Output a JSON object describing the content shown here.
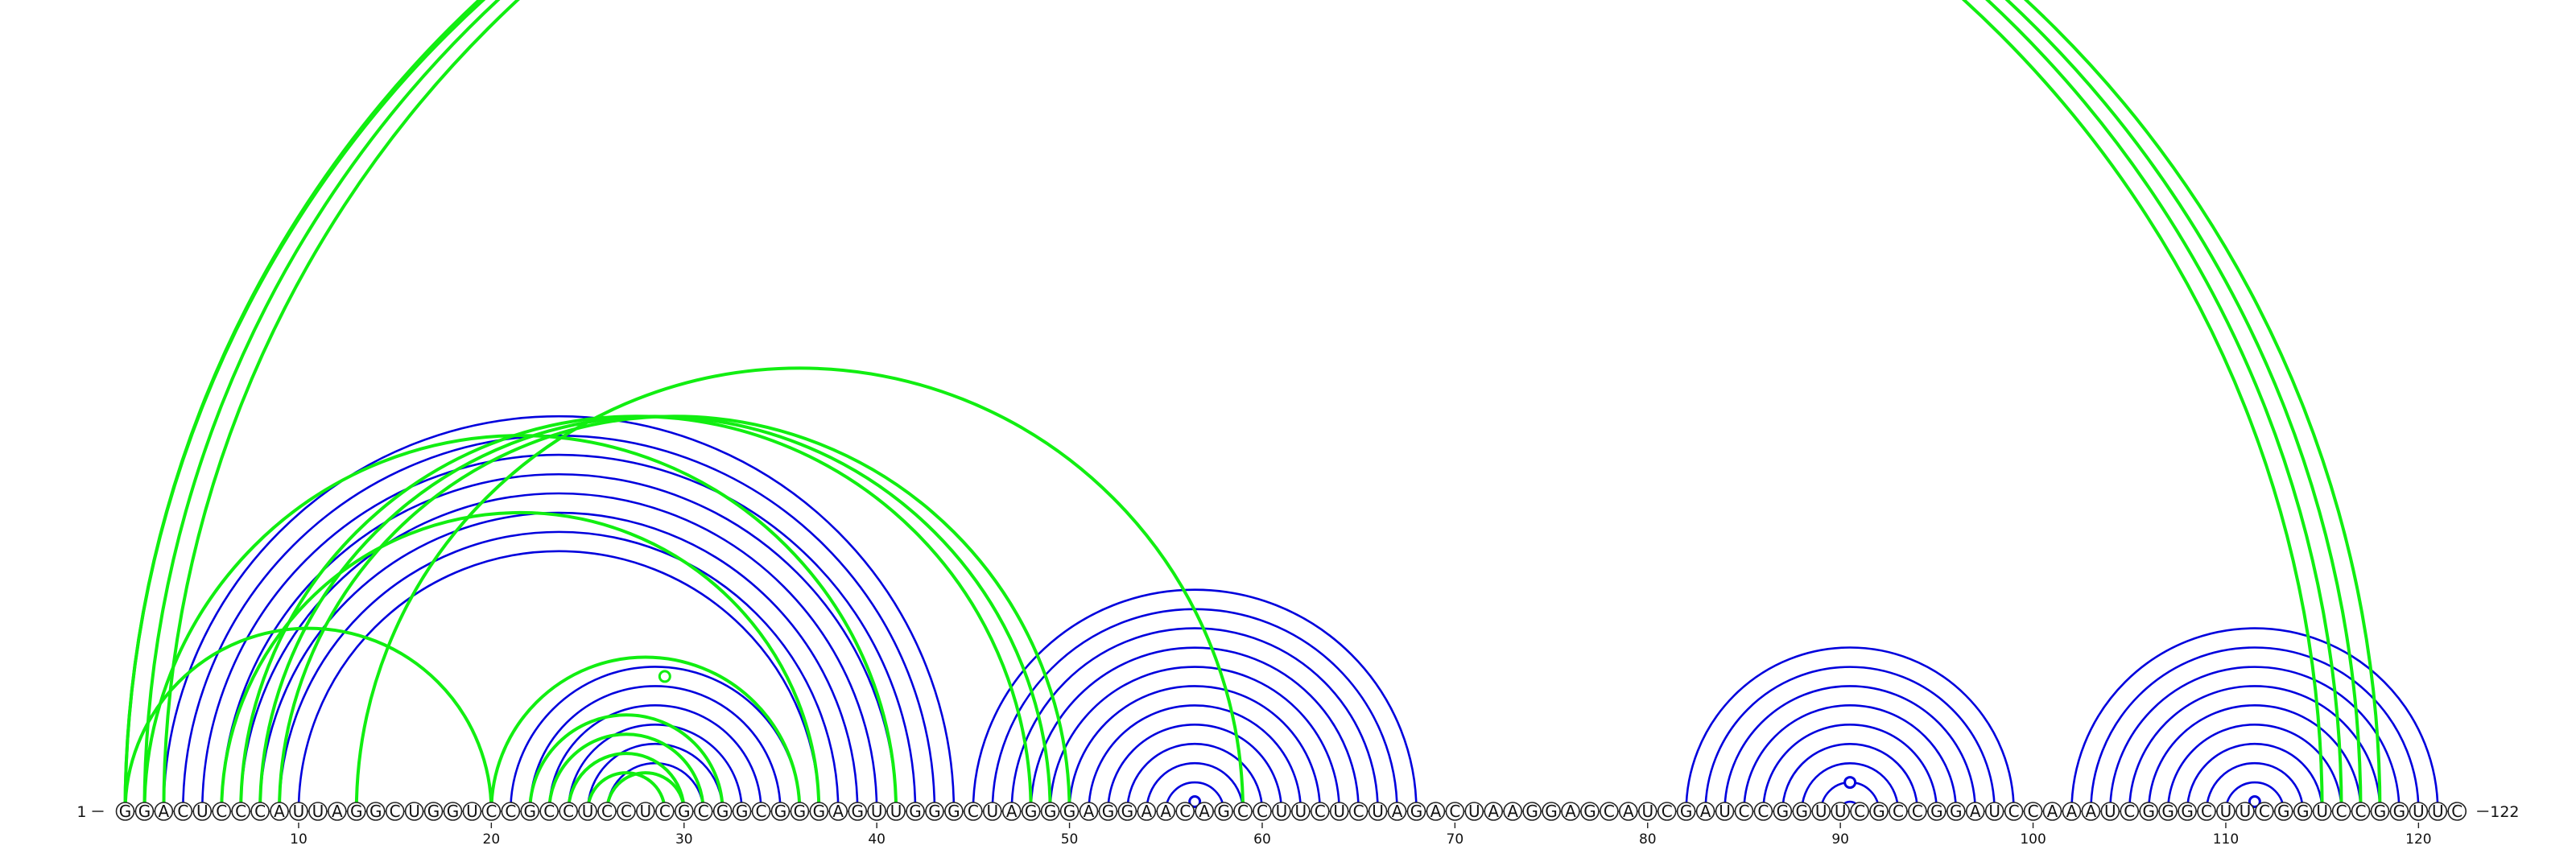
{
  "sequence": "GGACUCCCAUUAGGCUGGUCCGCCUCCUCGCGGCGGGAGUUGGGCUAGGGAGGAACAGCCUUCUCUAGACUAAGGAGCAUCGAUCCGGUUCGCCGGAUCCAAAUCGGGCUUCGGUCCGGUUC",
  "start_label": "1",
  "end_label": "122",
  "ticks": [
    10,
    20,
    30,
    40,
    50,
    60,
    70,
    80,
    90,
    100,
    110,
    120
  ],
  "colors": {
    "blue": "#0000dd",
    "green": "#11ee11",
    "outline": "#222222"
  },
  "blue_arcs": [
    [
      3,
      44
    ],
    [
      4,
      43
    ],
    [
      5,
      42
    ],
    [
      6,
      41
    ],
    [
      7,
      40
    ],
    [
      8,
      39
    ],
    [
      9,
      38
    ],
    [
      10,
      37
    ],
    [
      21,
      36
    ],
    [
      22,
      35
    ],
    [
      23,
      34
    ],
    [
      24,
      33
    ],
    [
      25,
      32
    ],
    [
      26,
      31
    ],
    [
      45,
      68
    ],
    [
      46,
      67
    ],
    [
      47,
      66
    ],
    [
      48,
      65
    ],
    [
      49,
      64
    ],
    [
      50,
      63
    ],
    [
      51,
      62
    ],
    [
      52,
      61
    ],
    [
      53,
      60
    ],
    [
      54,
      59
    ],
    [
      55,
      58
    ],
    [
      82,
      99
    ],
    [
      83,
      98
    ],
    [
      84,
      97
    ],
    [
      85,
      96
    ],
    [
      86,
      95
    ],
    [
      87,
      94
    ],
    [
      88,
      93
    ],
    [
      89,
      92
    ],
    [
      90,
      91
    ],
    [
      102,
      121
    ],
    [
      103,
      120
    ],
    [
      104,
      119
    ],
    [
      105,
      118
    ],
    [
      106,
      117
    ],
    [
      107,
      116
    ],
    [
      108,
      115
    ],
    [
      109,
      114
    ],
    [
      110,
      113
    ]
  ],
  "green_arcs": [
    [
      1,
      116
    ],
    [
      2,
      117
    ],
    [
      3,
      118
    ],
    [
      1,
      115
    ],
    [
      7,
      48
    ],
    [
      8,
      49
    ],
    [
      9,
      50
    ],
    [
      13,
      59
    ],
    [
      20,
      36
    ],
    [
      1,
      20
    ],
    [
      6,
      37
    ],
    [
      2,
      41
    ],
    [
      22,
      32
    ],
    [
      23,
      31
    ],
    [
      24,
      30
    ],
    [
      25,
      29
    ],
    [
      26,
      30
    ]
  ],
  "dots": [
    {
      "i": 22,
      "j": 36,
      "color": "green"
    },
    {
      "i": 56,
      "j": 57,
      "color": "blue"
    },
    {
      "i": 89,
      "j": 92,
      "color": "blue"
    },
    {
      "i": 111,
      "j": 112,
      "color": "blue"
    }
  ]
}
